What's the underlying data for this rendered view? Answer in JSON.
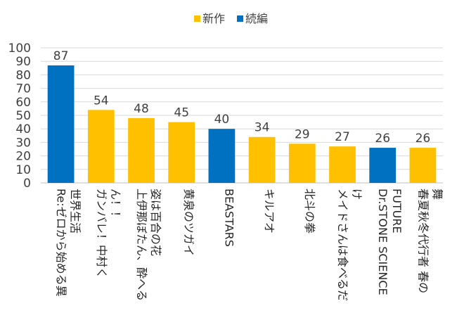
{
  "chart_data": {
    "type": "bar",
    "title": "",
    "xlabel": "",
    "ylabel": "",
    "ylim": [
      0,
      100
    ],
    "yticks": [
      0,
      10,
      20,
      30,
      40,
      50,
      60,
      70,
      80,
      90,
      100
    ],
    "grid": true,
    "legend_position": "top-center",
    "legend": [
      {
        "name": "新作",
        "color": "#FFC000"
      },
      {
        "name": "続編",
        "color": "#0070C0"
      }
    ],
    "categories": [
      {
        "lines": [
          "Re:ゼロから始める異",
          "世界生活"
        ],
        "value": 87,
        "series": "続編"
      },
      {
        "lines": [
          "ガンバレ！中村く",
          "ん！！"
        ],
        "value": 54,
        "series": "新作"
      },
      {
        "lines": [
          "上伊那ぼたん、酔へる",
          "姿は百合の花"
        ],
        "value": 48,
        "series": "新作"
      },
      {
        "lines": [
          "黄泉のツガイ"
        ],
        "value": 45,
        "series": "新作"
      },
      {
        "lines": [
          "BEASTARS"
        ],
        "value": 40,
        "series": "続編"
      },
      {
        "lines": [
          "キルアオ"
        ],
        "value": 34,
        "series": "新作"
      },
      {
        "lines": [
          "北斗の拳"
        ],
        "value": 29,
        "series": "新作"
      },
      {
        "lines": [
          "メイドさんは食べるだ",
          "け"
        ],
        "value": 27,
        "series": "新作"
      },
      {
        "lines": [
          "Dr.STONE SCIENCE",
          "FUTURE"
        ],
        "value": 26,
        "series": "続編"
      },
      {
        "lines": [
          "春夏秋冬代行者 春の",
          "舞"
        ],
        "value": 26,
        "series": "新作"
      }
    ]
  }
}
